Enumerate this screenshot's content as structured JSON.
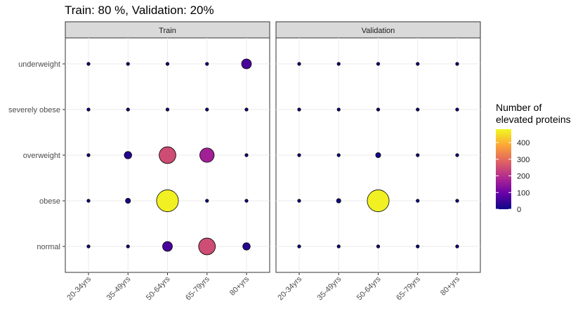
{
  "chart_data": {
    "type": "scatter",
    "title": "Train: 80 %, Validation: 20%",
    "facets": [
      "Train",
      "Validation"
    ],
    "x_categories": [
      "20-34yrs",
      "35-49yrs",
      "50-64yrs",
      "65-79yrs",
      "80+yrs"
    ],
    "y_categories": [
      "normal",
      "obese",
      "overweight",
      "severely obese",
      "underweight"
    ],
    "legend": {
      "title_lines": [
        "Number of",
        "elevated proteins"
      ],
      "ticks": [
        0,
        100,
        200,
        300,
        400
      ],
      "range": [
        0,
        480
      ],
      "placement": "right",
      "colors": [
        "#0d0887",
        "#6a00a8",
        "#b12a90",
        "#e16462",
        "#fca636",
        "#f0f921"
      ]
    },
    "grid": true,
    "points": [
      {
        "facet": "Train",
        "x": "20-34yrs",
        "y": "underweight",
        "value": 0
      },
      {
        "facet": "Train",
        "x": "35-49yrs",
        "y": "underweight",
        "value": 0
      },
      {
        "facet": "Train",
        "x": "50-64yrs",
        "y": "underweight",
        "value": 0
      },
      {
        "facet": "Train",
        "x": "65-79yrs",
        "y": "underweight",
        "value": 0
      },
      {
        "facet": "Train",
        "x": "80+yrs",
        "y": "underweight",
        "value": 60
      },
      {
        "facet": "Train",
        "x": "20-34yrs",
        "y": "severely obese",
        "value": 0
      },
      {
        "facet": "Train",
        "x": "35-49yrs",
        "y": "severely obese",
        "value": 0
      },
      {
        "facet": "Train",
        "x": "50-64yrs",
        "y": "severely obese",
        "value": 0
      },
      {
        "facet": "Train",
        "x": "65-79yrs",
        "y": "severely obese",
        "value": 0
      },
      {
        "facet": "Train",
        "x": "80+yrs",
        "y": "severely obese",
        "value": 0
      },
      {
        "facet": "Train",
        "x": "20-34yrs",
        "y": "overweight",
        "value": 0
      },
      {
        "facet": "Train",
        "x": "35-49yrs",
        "y": "overweight",
        "value": 25
      },
      {
        "facet": "Train",
        "x": "50-64yrs",
        "y": "overweight",
        "value": 250
      },
      {
        "facet": "Train",
        "x": "65-79yrs",
        "y": "overweight",
        "value": 170
      },
      {
        "facet": "Train",
        "x": "80+yrs",
        "y": "overweight",
        "value": 0
      },
      {
        "facet": "Train",
        "x": "20-34yrs",
        "y": "obese",
        "value": 0
      },
      {
        "facet": "Train",
        "x": "35-49yrs",
        "y": "obese",
        "value": 5
      },
      {
        "facet": "Train",
        "x": "50-64yrs",
        "y": "obese",
        "value": 470
      },
      {
        "facet": "Train",
        "x": "65-79yrs",
        "y": "obese",
        "value": 0
      },
      {
        "facet": "Train",
        "x": "80+yrs",
        "y": "obese",
        "value": 0
      },
      {
        "facet": "Train",
        "x": "20-34yrs",
        "y": "normal",
        "value": 0
      },
      {
        "facet": "Train",
        "x": "35-49yrs",
        "y": "normal",
        "value": 0
      },
      {
        "facet": "Train",
        "x": "50-64yrs",
        "y": "normal",
        "value": 60
      },
      {
        "facet": "Train",
        "x": "65-79yrs",
        "y": "normal",
        "value": 250
      },
      {
        "facet": "Train",
        "x": "80+yrs",
        "y": "normal",
        "value": 25
      },
      {
        "facet": "Validation",
        "x": "20-34yrs",
        "y": "underweight",
        "value": 0
      },
      {
        "facet": "Validation",
        "x": "35-49yrs",
        "y": "underweight",
        "value": 0
      },
      {
        "facet": "Validation",
        "x": "50-64yrs",
        "y": "underweight",
        "value": 0
      },
      {
        "facet": "Validation",
        "x": "65-79yrs",
        "y": "underweight",
        "value": 0
      },
      {
        "facet": "Validation",
        "x": "80+yrs",
        "y": "underweight",
        "value": 0
      },
      {
        "facet": "Validation",
        "x": "20-34yrs",
        "y": "severely obese",
        "value": 0
      },
      {
        "facet": "Validation",
        "x": "35-49yrs",
        "y": "severely obese",
        "value": 0
      },
      {
        "facet": "Validation",
        "x": "50-64yrs",
        "y": "severely obese",
        "value": 0
      },
      {
        "facet": "Validation",
        "x": "65-79yrs",
        "y": "severely obese",
        "value": 0
      },
      {
        "facet": "Validation",
        "x": "80+yrs",
        "y": "severely obese",
        "value": 0
      },
      {
        "facet": "Validation",
        "x": "20-34yrs",
        "y": "overweight",
        "value": 0
      },
      {
        "facet": "Validation",
        "x": "35-49yrs",
        "y": "overweight",
        "value": 0
      },
      {
        "facet": "Validation",
        "x": "50-64yrs",
        "y": "overweight",
        "value": 5
      },
      {
        "facet": "Validation",
        "x": "65-79yrs",
        "y": "overweight",
        "value": 0
      },
      {
        "facet": "Validation",
        "x": "80+yrs",
        "y": "overweight",
        "value": 0
      },
      {
        "facet": "Validation",
        "x": "20-34yrs",
        "y": "obese",
        "value": 0
      },
      {
        "facet": "Validation",
        "x": "35-49yrs",
        "y": "obese",
        "value": 2
      },
      {
        "facet": "Validation",
        "x": "50-64yrs",
        "y": "obese",
        "value": 470
      },
      {
        "facet": "Validation",
        "x": "65-79yrs",
        "y": "obese",
        "value": 0
      },
      {
        "facet": "Validation",
        "x": "80+yrs",
        "y": "obese",
        "value": 0
      },
      {
        "facet": "Validation",
        "x": "20-34yrs",
        "y": "normal",
        "value": 0
      },
      {
        "facet": "Validation",
        "x": "35-49yrs",
        "y": "normal",
        "value": 0
      },
      {
        "facet": "Validation",
        "x": "50-64yrs",
        "y": "normal",
        "value": 0
      },
      {
        "facet": "Validation",
        "x": "65-79yrs",
        "y": "normal",
        "value": 0
      },
      {
        "facet": "Validation",
        "x": "80+yrs",
        "y": "normal",
        "value": 0
      }
    ]
  }
}
